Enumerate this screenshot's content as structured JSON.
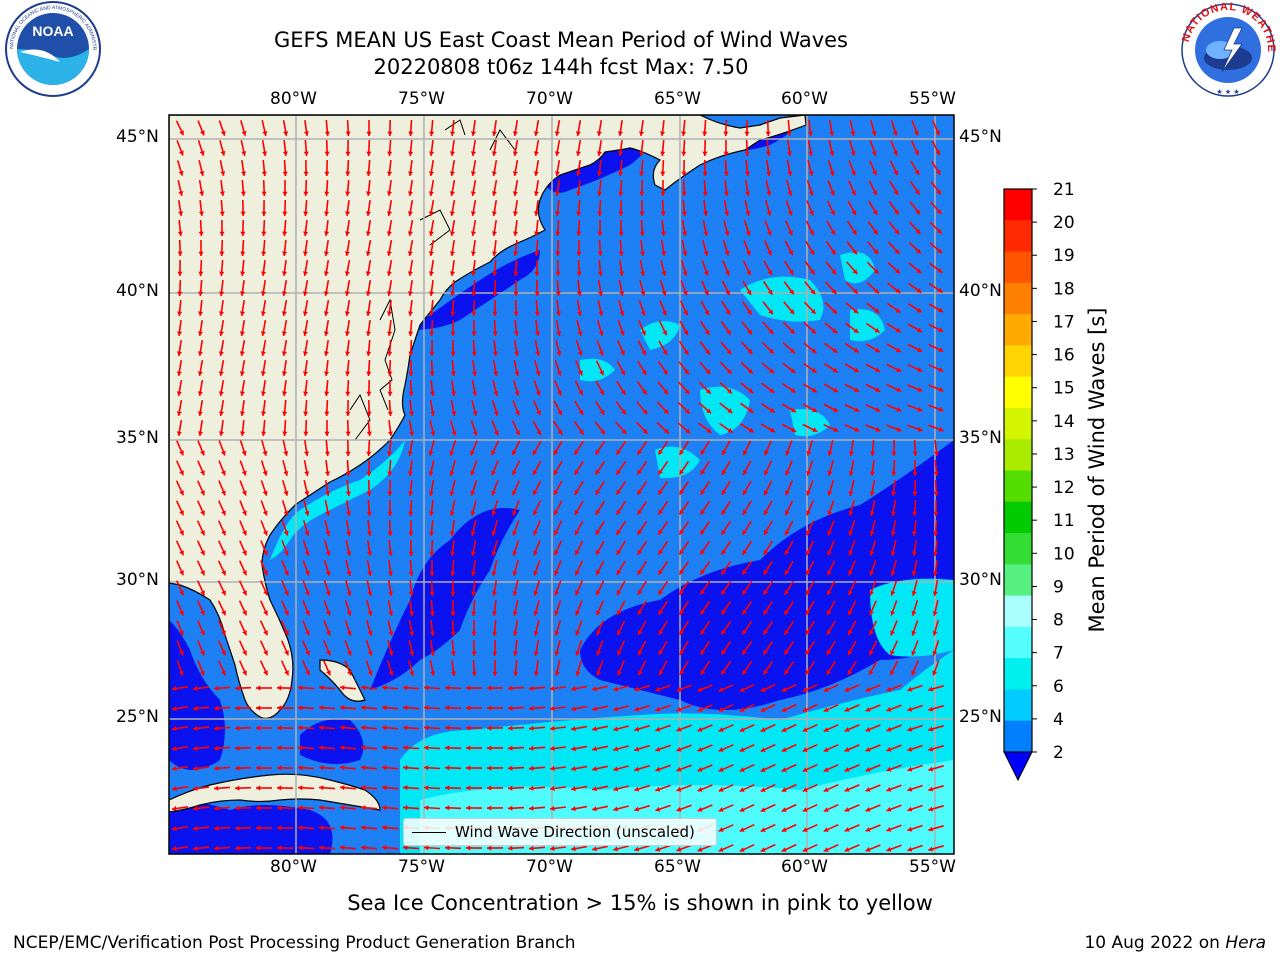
{
  "title": {
    "line1": "GEFS MEAN US East Coast Mean Period of Wind Waves",
    "line2": "20220808 t06z 144h fcst   Max: 7.50"
  },
  "logos": {
    "left": {
      "icon": "noaa-logo-icon",
      "text": "NOAA",
      "ring_text": "NATIONAL OCEANIC AND ATMOSPHERIC ADMINISTRATION · U.S. DEPARTMENT OF COMMERCE"
    },
    "right": {
      "icon": "national-weather-service-logo-icon",
      "ring_text": "NATIONAL WEATHER SERVICE"
    }
  },
  "map": {
    "lon_ticks": [
      "80°W",
      "75°W",
      "70°W",
      "65°W",
      "60°W",
      "55°W"
    ],
    "lat_ticks": [
      "45°N",
      "40°N",
      "35°N",
      "30°N",
      "25°N"
    ],
    "grid": true,
    "colors": {
      "land": "#efefde",
      "coast": "#000000",
      "arrows": "#ff0000",
      "grid": "#b0b0b0"
    }
  },
  "colorbar": {
    "label": "Mean Period of Wind Waves [s]",
    "ticks": [
      "21",
      "20",
      "19",
      "18",
      "17",
      "16",
      "15",
      "14",
      "13",
      "12",
      "11",
      "10",
      "9",
      "8",
      "7",
      "6",
      "4",
      "2"
    ],
    "colors": [
      "#ff0000",
      "#ff2a00",
      "#ff5500",
      "#ff8000",
      "#ffaa00",
      "#ffd400",
      "#ffff00",
      "#d4f500",
      "#aaeb00",
      "#55dd00",
      "#00cc00",
      "#33dd33",
      "#55f080",
      "#aaffff",
      "#55ffff",
      "#00f0f0",
      "#00ccff",
      "#0080ff"
    ],
    "extend_color": "#0000ff"
  },
  "legend": {
    "label": "Wind Wave Direction (unscaled)"
  },
  "notes": {
    "sea_ice": "Sea Ice Concentration > 15% is shown in pink to yellow"
  },
  "footer": {
    "left": "NCEP/EMC/Verification Post Processing Product Generation Branch",
    "right_date": "10 Aug 2022 on ",
    "right_host": "Hera"
  }
}
